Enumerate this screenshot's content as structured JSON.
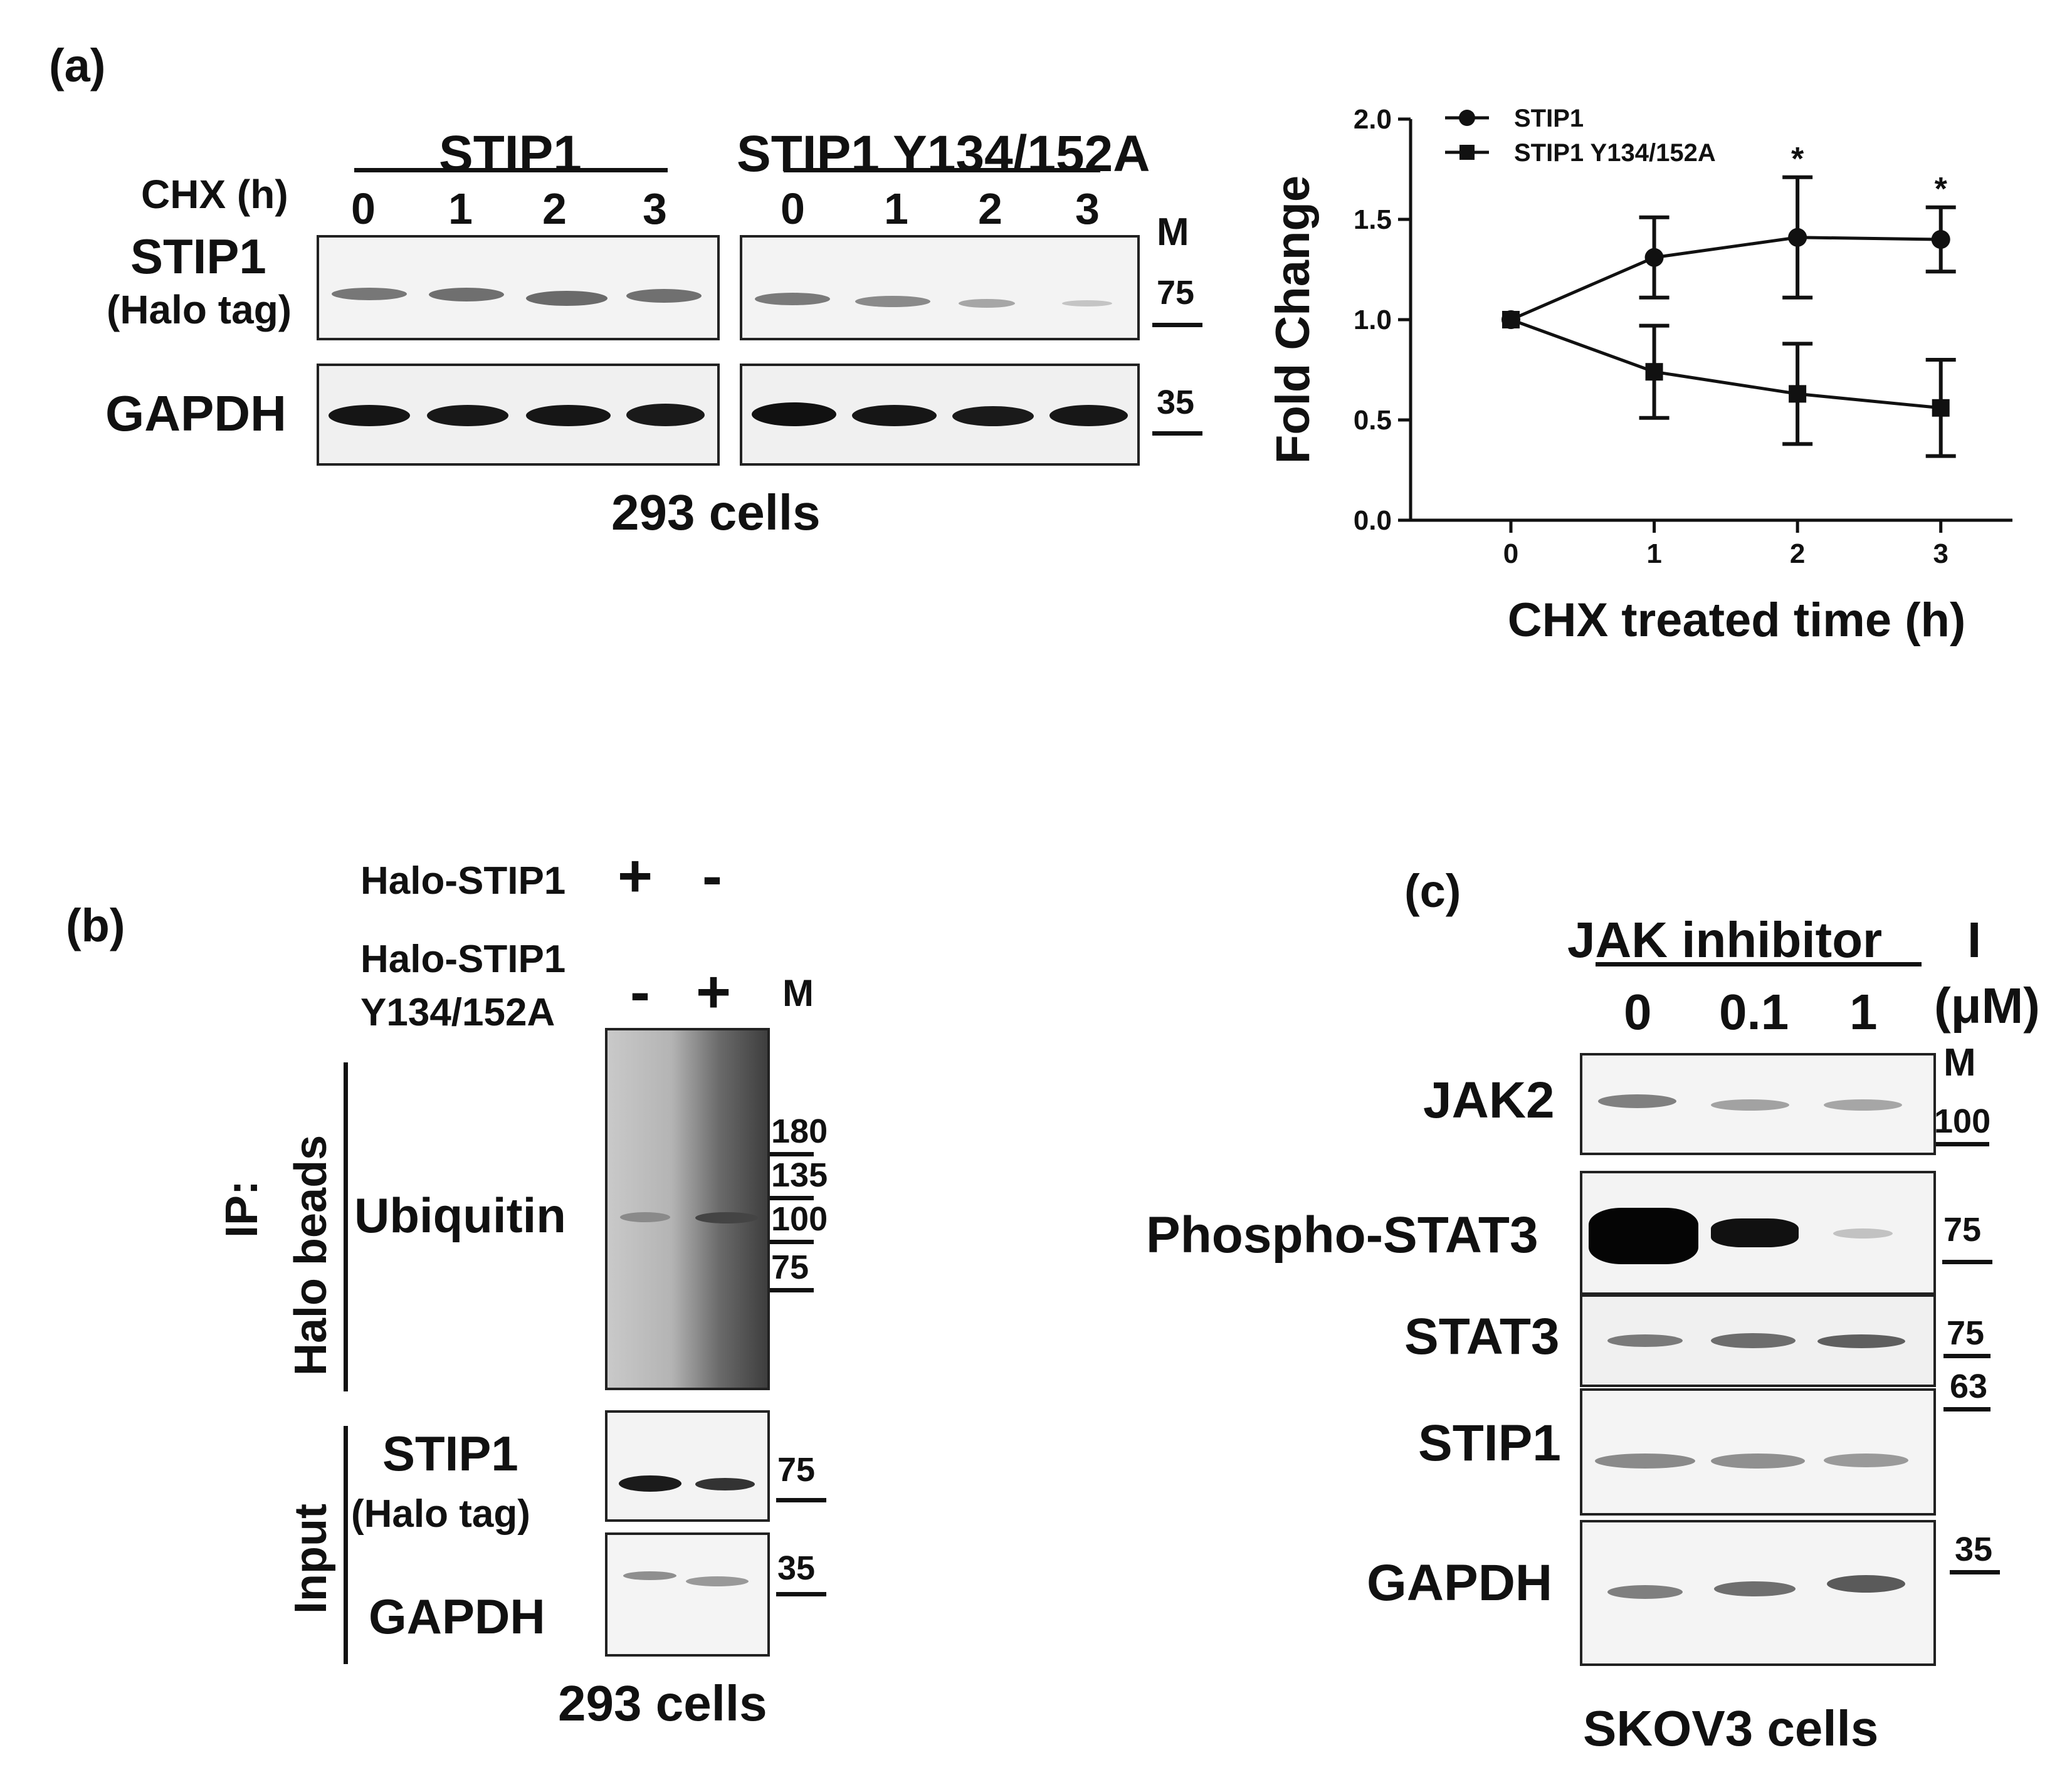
{
  "panel_a": {
    "label": "(a)",
    "group1": "STIP1",
    "group2": "STIP1 Y134/152A",
    "chx_label": "CHX (h)",
    "lanes": [
      "0",
      "1",
      "2",
      "3"
    ],
    "row1_label_line1": "STIP1",
    "row1_label_line2": "(Halo tag)",
    "row2_label": "GAPDH",
    "marker_header": "M",
    "marker_75": "75",
    "marker_35": "35",
    "cell_line": "293 cells"
  },
  "chart_data": {
    "type": "line",
    "x": [
      0,
      1,
      2,
      3
    ],
    "xlabel": "CHX treated time (h)",
    "ylabel": "Fold Change",
    "ylim": [
      0.0,
      2.0
    ],
    "yticks": [
      "0.0",
      "0.5",
      "1.0",
      "1.5",
      "2.0"
    ],
    "xticks": [
      "0",
      "1",
      "2",
      "3"
    ],
    "legend_position": "top-left",
    "series": [
      {
        "name": "STIP1",
        "marker": "circle",
        "values": [
          1.0,
          1.31,
          1.41,
          1.4
        ],
        "errors": [
          0,
          0.2,
          0.3,
          0.16
        ]
      },
      {
        "name": "STIP1 Y134/152A",
        "marker": "square",
        "values": [
          1.0,
          0.74,
          0.63,
          0.56
        ],
        "errors": [
          0,
          0.23,
          0.25,
          0.24
        ]
      }
    ],
    "annotations": [
      {
        "x": 2,
        "text": "*"
      },
      {
        "x": 3,
        "text": "*"
      }
    ]
  },
  "panel_b": {
    "label": "(b)",
    "row1": "Halo-STIP1",
    "row2_line1": "Halo-STIP1",
    "row2_line2": "Y134/152A",
    "row1_signs": [
      "+",
      "-"
    ],
    "row2_signs": [
      "-",
      "+"
    ],
    "marker_header": "M",
    "ip_label": "IP:",
    "beads_label": "Halo beads",
    "ubiquitin": "Ubiquitin",
    "input_label": "Input",
    "stip1": "STIP1",
    "halo_tag": "(Halo tag)",
    "gapdh": "GAPDH",
    "markers_ub": [
      "180",
      "135",
      "100",
      "75"
    ],
    "marker_75": "75",
    "marker_35": "35",
    "cell_line": "293 cells"
  },
  "panel_c": {
    "label": "(c)",
    "header": "JAK inhibitor",
    "header_suffix": "I",
    "unit": "(μM)",
    "doses": [
      "0",
      "0.1",
      "1"
    ],
    "marker_header": "M",
    "rows": [
      "JAK2",
      "Phospho-STAT3",
      "STAT3",
      "STIP1",
      "GAPDH"
    ],
    "markers": [
      "100",
      "75",
      "75",
      "63",
      "35"
    ],
    "cell_line": "SKOV3 cells"
  }
}
